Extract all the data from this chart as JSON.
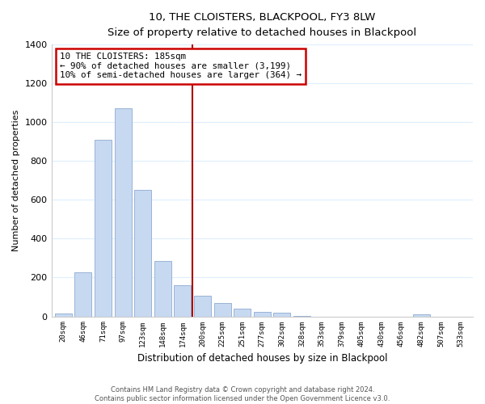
{
  "title": "10, THE CLOISTERS, BLACKPOOL, FY3 8LW",
  "subtitle": "Size of property relative to detached houses in Blackpool",
  "xlabel": "Distribution of detached houses by size in Blackpool",
  "ylabel": "Number of detached properties",
  "bar_labels": [
    "20sqm",
    "46sqm",
    "71sqm",
    "97sqm",
    "123sqm",
    "148sqm",
    "174sqm",
    "200sqm",
    "225sqm",
    "251sqm",
    "277sqm",
    "302sqm",
    "328sqm",
    "353sqm",
    "379sqm",
    "405sqm",
    "430sqm",
    "456sqm",
    "482sqm",
    "507sqm",
    "533sqm"
  ],
  "bar_values": [
    15,
    228,
    910,
    1070,
    650,
    285,
    160,
    107,
    70,
    38,
    25,
    18,
    3,
    0,
    0,
    0,
    0,
    0,
    12,
    0,
    0
  ],
  "bar_color": "#c6d9f1",
  "bar_edge_color": "#9ab3d5",
  "property_line_label": "10 THE CLOISTERS: 185sqm",
  "annotation_line1": "← 90% of detached houses are smaller (3,199)",
  "annotation_line2": "10% of semi-detached houses are larger (364) →",
  "annotation_box_color": "white",
  "annotation_box_edge_color": "#cc0000",
  "vline_color": "#aa0000",
  "vline_x_index": 6.5,
  "ylim": [
    0,
    1400
  ],
  "yticks": [
    0,
    200,
    400,
    600,
    800,
    1000,
    1200,
    1400
  ],
  "grid_color": "#ddeeff",
  "footer_line1": "Contains HM Land Registry data © Crown copyright and database right 2024.",
  "footer_line2": "Contains public sector information licensed under the Open Government Licence v3.0.",
  "background_color": "#ffffff"
}
